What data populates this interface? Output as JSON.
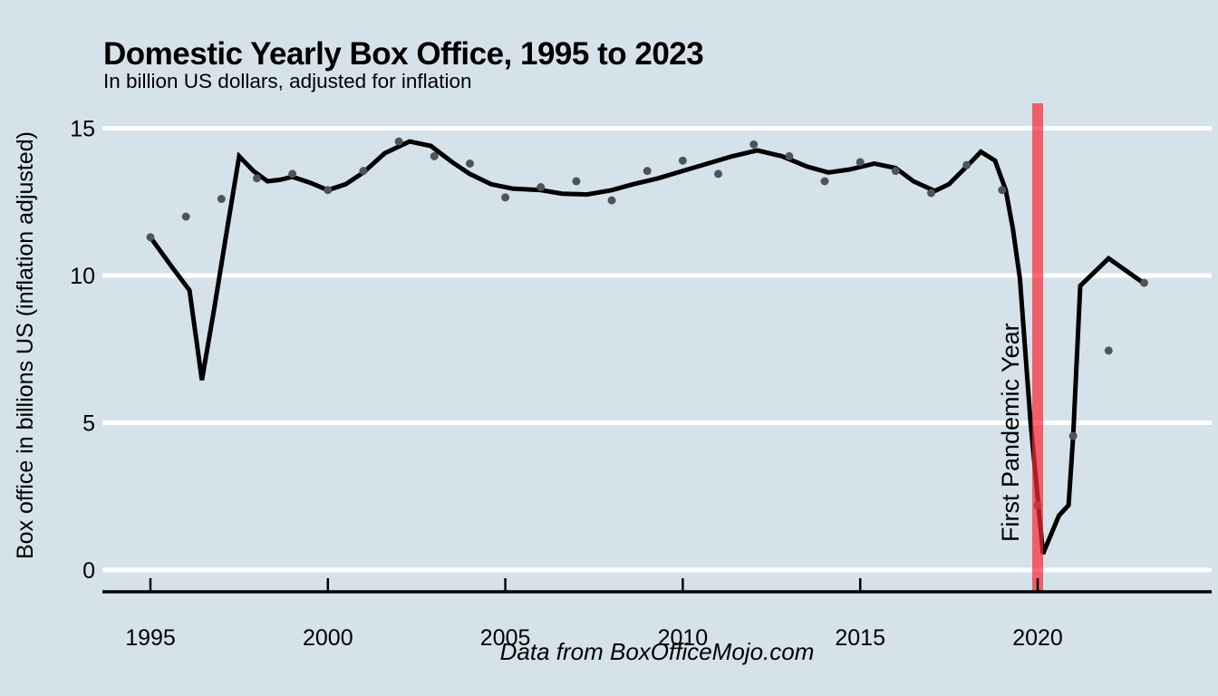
{
  "colors": {
    "background": "#d6e2e9",
    "gridline": "#ffffff",
    "trend_line": "#000000",
    "data_point": "#4e555a",
    "pandemic_bar": "rgba(250,40,50,0.7)",
    "axis": "#000000",
    "text": "#000000"
  },
  "chart_data": {
    "type": "scatter",
    "title": "Domestic Yearly Box Office, 1995 to 2023",
    "subtitle": "In billion US dollars, adjusted for inflation",
    "caption": "Data from BoxOfficeMojo.com",
    "ylabel": "Box office in billions US (inflation adjusted)",
    "xlabel": "",
    "legend": "none",
    "grid": "horizontal white gridlines only",
    "xlim": [
      1993.6,
      2024.9
    ],
    "ylim": [
      -0.75,
      15.85
    ],
    "x_ticks": [
      "1995",
      "2000",
      "2005",
      "2010",
      "2015",
      "2020"
    ],
    "x_tick_years": [
      1995,
      2000,
      2005,
      2010,
      2015,
      2020
    ],
    "y_ticks": [
      "0",
      "5",
      "10",
      "15"
    ],
    "y_tick_values": [
      0,
      5,
      10,
      15
    ],
    "annotation": {
      "label": "First Pandemic Year",
      "bar_year": 2020,
      "bar_spans_full_panel_height": true
    },
    "series": [
      {
        "name": "yearly-box-office-points",
        "type": "scatter",
        "x": [
          1995,
          1996,
          1997,
          1998,
          1999,
          2000,
          2001,
          2002,
          2003,
          2004,
          2005,
          2006,
          2007,
          2008,
          2009,
          2010,
          2011,
          2012,
          2013,
          2014,
          2015,
          2016,
          2017,
          2018,
          2019,
          2020,
          2021,
          2022,
          2023
        ],
        "y": [
          11.3,
          12.0,
          12.6,
          13.3,
          13.45,
          12.9,
          13.55,
          14.55,
          14.05,
          13.8,
          12.65,
          13.0,
          13.2,
          12.55,
          13.55,
          13.9,
          13.45,
          14.45,
          14.05,
          13.2,
          13.85,
          13.55,
          12.8,
          13.75,
          12.9,
          2.2,
          4.55,
          7.45,
          9.75
        ]
      },
      {
        "name": "loess-smooth-line",
        "type": "line",
        "x": [
          1995.0,
          1995.6,
          1996.1,
          1996.45,
          1996.8,
          1997.15,
          1997.5,
          1997.9,
          1998.3,
          1998.65,
          1999.0,
          1999.5,
          2000.0,
          2000.5,
          2001.0,
          2001.6,
          2002.3,
          2002.9,
          2003.5,
          2004.0,
          2004.6,
          2005.2,
          2006.0,
          2006.6,
          2007.3,
          2008.0,
          2008.6,
          2009.3,
          2010.0,
          2010.7,
          2011.4,
          2012.1,
          2012.8,
          2013.5,
          2014.1,
          2014.7,
          2015.4,
          2016.0,
          2016.5,
          2017.1,
          2017.5,
          2018.0,
          2018.4,
          2018.8,
          2019.1,
          2019.3,
          2019.5,
          2019.8,
          2020.15,
          2020.6,
          2020.87,
          2021.0,
          2021.2,
          2022.0,
          2023.0
        ],
        "y": [
          11.3,
          10.3,
          9.5,
          6.45,
          8.9,
          11.5,
          14.05,
          13.55,
          13.2,
          13.25,
          13.35,
          13.15,
          12.9,
          13.1,
          13.5,
          14.15,
          14.55,
          14.4,
          13.85,
          13.45,
          13.1,
          12.95,
          12.9,
          12.78,
          12.75,
          12.9,
          13.1,
          13.3,
          13.55,
          13.8,
          14.05,
          14.25,
          14.05,
          13.7,
          13.5,
          13.6,
          13.8,
          13.65,
          13.2,
          12.87,
          13.1,
          13.7,
          14.2,
          13.9,
          12.9,
          11.6,
          9.9,
          5.0,
          0.55,
          1.85,
          2.2,
          4.55,
          9.65,
          10.58,
          9.73
        ]
      }
    ]
  }
}
